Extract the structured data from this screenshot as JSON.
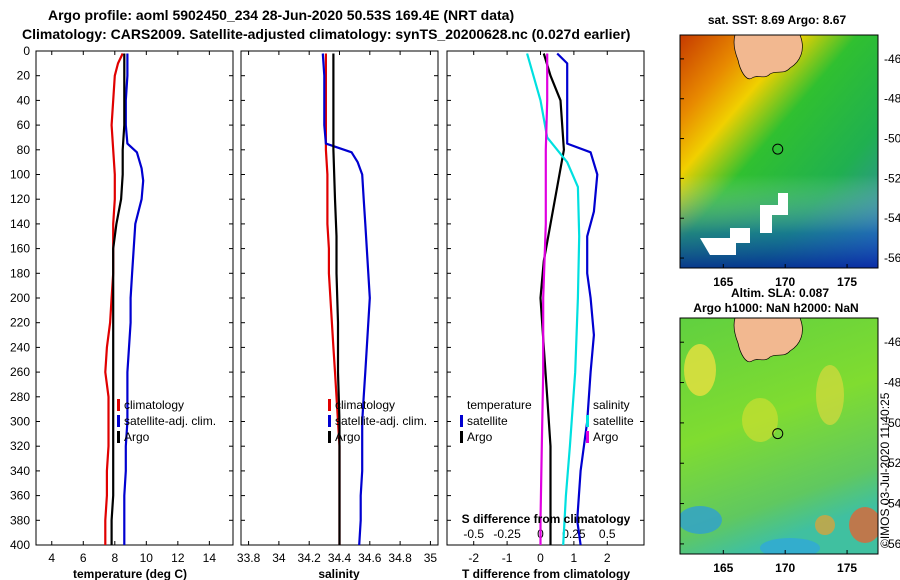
{
  "header": {
    "title_line1": "Argo profile: aoml 5902450_234 28-Jun-2020 50.53S 169.4E (NRT data)",
    "title_line2": "Climatology: CARS2009. Satellite-adjusted climatology: synTS_20200628.nc (0.027d earlier)"
  },
  "colors": {
    "climatology": "#e00000",
    "satellite": "#0000d0",
    "argo": "#000000",
    "salinity_diff": "#00e0e0",
    "temp_diff_argo": "#e000e0"
  },
  "chart_data": [
    {
      "type": "line",
      "id": "temperature",
      "xlabel": "temperature (deg C)",
      "ylabel": "",
      "xlim": [
        3,
        15.5
      ],
      "ylim": [
        400,
        0
      ],
      "xticks": [
        "4",
        "6",
        "8",
        "10",
        "12",
        "14"
      ],
      "xtick_values": [
        4,
        6,
        8,
        10,
        12,
        14
      ],
      "yticks": [
        "0",
        "20",
        "40",
        "60",
        "80",
        "100",
        "120",
        "140",
        "160",
        "180",
        "200",
        "220",
        "240",
        "260",
        "280",
        "300",
        "320",
        "340",
        "360",
        "380",
        "400"
      ],
      "ytick_values": [
        0,
        20,
        40,
        60,
        80,
        100,
        120,
        140,
        160,
        180,
        200,
        220,
        240,
        260,
        280,
        300,
        320,
        340,
        360,
        380,
        400
      ],
      "legend": [
        "climatology",
        "satellite-adj. clim.",
        "Argo"
      ],
      "series": [
        {
          "name": "climatology",
          "color": "#e00000",
          "points": [
            [
              8.5,
              2
            ],
            [
              8.2,
              10
            ],
            [
              8.0,
              20
            ],
            [
              7.9,
              40
            ],
            [
              7.8,
              60
            ],
            [
              7.9,
              80
            ],
            [
              8.0,
              100
            ],
            [
              8.0,
              120
            ],
            [
              7.9,
              140
            ],
            [
              7.9,
              160
            ],
            [
              7.9,
              180
            ],
            [
              7.8,
              200
            ],
            [
              7.7,
              220
            ],
            [
              7.5,
              240
            ],
            [
              7.4,
              260
            ],
            [
              7.6,
              280
            ],
            [
              7.6,
              300
            ],
            [
              7.6,
              320
            ],
            [
              7.5,
              340
            ],
            [
              7.5,
              360
            ],
            [
              7.4,
              380
            ],
            [
              7.4,
              400
            ]
          ]
        },
        {
          "name": "satellite-adj. clim.",
          "color": "#0000d0",
          "points": [
            [
              8.8,
              2
            ],
            [
              8.8,
              20
            ],
            [
              8.7,
              40
            ],
            [
              8.7,
              60
            ],
            [
              8.8,
              75
            ],
            [
              9.4,
              82
            ],
            [
              9.7,
              95
            ],
            [
              9.8,
              105
            ],
            [
              9.7,
              120
            ],
            [
              9.3,
              140
            ],
            [
              9.2,
              160
            ],
            [
              9.1,
              180
            ],
            [
              9.0,
              200
            ],
            [
              9.0,
              220
            ],
            [
              8.9,
              240
            ],
            [
              8.8,
              260
            ],
            [
              8.8,
              280
            ],
            [
              8.8,
              300
            ],
            [
              8.7,
              320
            ],
            [
              8.7,
              340
            ],
            [
              8.6,
              360
            ],
            [
              8.6,
              380
            ],
            [
              8.6,
              400
            ]
          ]
        },
        {
          "name": "Argo",
          "color": "#000000",
          "points": [
            [
              8.6,
              2
            ],
            [
              8.6,
              20
            ],
            [
              8.6,
              40
            ],
            [
              8.6,
              60
            ],
            [
              8.5,
              80
            ],
            [
              8.5,
              100
            ],
            [
              8.4,
              120
            ],
            [
              8.1,
              140
            ],
            [
              7.9,
              160
            ],
            [
              7.9,
              180
            ],
            [
              7.9,
              200
            ],
            [
              7.9,
              220
            ],
            [
              7.9,
              240
            ],
            [
              7.9,
              260
            ],
            [
              7.9,
              280
            ],
            [
              7.9,
              300
            ],
            [
              7.9,
              320
            ],
            [
              7.9,
              340
            ],
            [
              7.9,
              360
            ],
            [
              7.8,
              380
            ],
            [
              7.8,
              400
            ]
          ]
        }
      ]
    },
    {
      "type": "line",
      "id": "salinity",
      "xlabel": "salinity",
      "ylabel": "",
      "xlim": [
        33.75,
        35.05
      ],
      "ylim": [
        400,
        0
      ],
      "xticks": [
        "33.8",
        "34",
        "34.2",
        "34.4",
        "34.6",
        "34.8",
        "35"
      ],
      "xtick_values": [
        33.8,
        34.0,
        34.2,
        34.4,
        34.6,
        34.8,
        35.0
      ],
      "legend": [
        "climatology",
        "satellite-adj. clim.",
        "Argo"
      ],
      "series": [
        {
          "name": "climatology",
          "color": "#e00000",
          "points": [
            [
              34.31,
              2
            ],
            [
              34.31,
              20
            ],
            [
              34.31,
              40
            ],
            [
              34.31,
              60
            ],
            [
              34.31,
              80
            ],
            [
              34.32,
              100
            ],
            [
              34.32,
              120
            ],
            [
              34.32,
              140
            ],
            [
              34.33,
              160
            ],
            [
              34.33,
              180
            ],
            [
              34.34,
              200
            ],
            [
              34.35,
              220
            ],
            [
              34.36,
              240
            ],
            [
              34.37,
              260
            ],
            [
              34.38,
              280
            ],
            [
              34.39,
              300
            ],
            [
              34.4,
              320
            ],
            [
              34.4,
              340
            ],
            [
              34.4,
              360
            ],
            [
              34.4,
              380
            ],
            [
              34.4,
              400
            ]
          ]
        },
        {
          "name": "satellite-adj. clim.",
          "color": "#0000d0",
          "points": [
            [
              34.29,
              2
            ],
            [
              34.3,
              20
            ],
            [
              34.3,
              40
            ],
            [
              34.3,
              60
            ],
            [
              34.31,
              75
            ],
            [
              34.48,
              82
            ],
            [
              34.52,
              90
            ],
            [
              34.55,
              100
            ],
            [
              34.56,
              120
            ],
            [
              34.57,
              140
            ],
            [
              34.58,
              160
            ],
            [
              34.59,
              180
            ],
            [
              34.6,
              200
            ],
            [
              34.59,
              220
            ],
            [
              34.58,
              240
            ],
            [
              34.57,
              260
            ],
            [
              34.56,
              280
            ],
            [
              34.55,
              300
            ],
            [
              34.55,
              320
            ],
            [
              34.55,
              340
            ],
            [
              34.54,
              360
            ],
            [
              34.54,
              380
            ],
            [
              34.53,
              400
            ]
          ]
        },
        {
          "name": "Argo",
          "color": "#000000",
          "points": [
            [
              34.36,
              2
            ],
            [
              34.36,
              40
            ],
            [
              34.36,
              80
            ],
            [
              34.37,
              120
            ],
            [
              34.38,
              150
            ],
            [
              34.38,
              180
            ],
            [
              34.39,
              220
            ],
            [
              34.39,
              260
            ],
            [
              34.4,
              300
            ],
            [
              34.4,
              340
            ],
            [
              34.4,
              380
            ],
            [
              34.4,
              400
            ]
          ]
        }
      ]
    },
    {
      "type": "line",
      "id": "differences",
      "xlabel": "T difference from climatology",
      "xlabel2": "S difference from climatology",
      "xlim": [
        -2.8,
        3.1
      ],
      "ylim": [
        400,
        0
      ],
      "xticks": [
        "-2",
        "-1",
        "0",
        "1",
        "2"
      ],
      "xtick_values": [
        -2,
        -1,
        0,
        1,
        2
      ],
      "xticks_top": [
        "-0.5",
        "-0.25",
        "0",
        "0.25",
        "0.5"
      ],
      "xtick_top_values": [
        -0.5,
        -0.25,
        0,
        0.25,
        0.5
      ],
      "legend_temperature_title": "temperature",
      "legend_salinity_title": "salinity",
      "legend_temperature": [
        "satellite",
        "Argo"
      ],
      "legend_salinity": [
        "satellite",
        "Argo"
      ],
      "series": [
        {
          "name": "T satellite",
          "color": "#0000d0",
          "points": [
            [
              0.5,
              2
            ],
            [
              0.8,
              10
            ],
            [
              0.8,
              40
            ],
            [
              0.8,
              75
            ],
            [
              1.5,
              82
            ],
            [
              1.7,
              100
            ],
            [
              1.6,
              130
            ],
            [
              1.4,
              150
            ],
            [
              1.4,
              180
            ],
            [
              1.5,
              200
            ],
            [
              1.6,
              230
            ],
            [
              1.5,
              260
            ],
            [
              1.4,
              300
            ],
            [
              1.2,
              340
            ],
            [
              1.1,
              380
            ],
            [
              1.2,
              400
            ]
          ]
        },
        {
          "name": "T Argo",
          "color": "#000000",
          "points": [
            [
              0.1,
              2
            ],
            [
              0.3,
              20
            ],
            [
              0.6,
              40
            ],
            [
              0.7,
              80
            ],
            [
              0.5,
              110
            ],
            [
              0.3,
              140
            ],
            [
              0.1,
              170
            ],
            [
              0.0,
              200
            ],
            [
              0.1,
              240
            ],
            [
              0.2,
              280
            ],
            [
              0.3,
              320
            ],
            [
              0.3,
              360
            ],
            [
              0.3,
              400
            ]
          ]
        },
        {
          "name": "S satellite",
          "color": "#00e0e0",
          "points": [
            [
              -0.1,
              2
            ],
            [
              0.0,
              40
            ],
            [
              0.05,
              70
            ],
            [
              0.2,
              90
            ],
            [
              0.28,
              110
            ],
            [
              0.29,
              150
            ],
            [
              0.28,
              200
            ],
            [
              0.26,
              260
            ],
            [
              0.22,
              320
            ],
            [
              0.19,
              360
            ],
            [
              0.17,
              400
            ]
          ]
        },
        {
          "name": "S Argo",
          "color": "#e000e0",
          "points": [
            [
              0.05,
              2
            ],
            [
              0.05,
              40
            ],
            [
              0.04,
              80
            ],
            [
              0.04,
              140
            ],
            [
              0.02,
              200
            ],
            [
              0.02,
              260
            ],
            [
              0.01,
              320
            ],
            [
              0.0,
              380
            ],
            [
              0.0,
              400
            ]
          ]
        }
      ]
    },
    {
      "type": "heatmap",
      "id": "sst_map",
      "title": "sat. SST: 8.69 Argo: 8.67",
      "xticks": [
        "165",
        "170",
        "175"
      ],
      "xtick_values": [
        165,
        170,
        175
      ],
      "yticks": [
        "-46",
        "-48",
        "-50",
        "-52",
        "-54",
        "-56"
      ],
      "ytick_values": [
        -46,
        -48,
        -50,
        -52,
        -54,
        -56
      ],
      "xlim": [
        161.5,
        177.5
      ],
      "ylim": [
        -56.5,
        -44.8
      ],
      "float_position": [
        169.4,
        -50.53
      ]
    },
    {
      "type": "heatmap",
      "id": "sla_map",
      "title": "Altim. SLA: 0.087",
      "subtitle": "Argo h1000: NaN h2000: NaN",
      "xticks": [
        "165",
        "170",
        "175"
      ],
      "xtick_values": [
        165,
        170,
        175
      ],
      "yticks": [
        "-46",
        "-48",
        "-50",
        "-52",
        "-54",
        "-56"
      ],
      "ytick_values": [
        -46,
        -48,
        -50,
        -52,
        -54,
        -56
      ],
      "xlim": [
        161.5,
        177.5
      ],
      "ylim": [
        -56.5,
        -44.8
      ],
      "float_position": [
        169.4,
        -50.53
      ]
    }
  ],
  "footer": {
    "stamp": "©IMOS 03-Jul-2020 11:40:25"
  }
}
